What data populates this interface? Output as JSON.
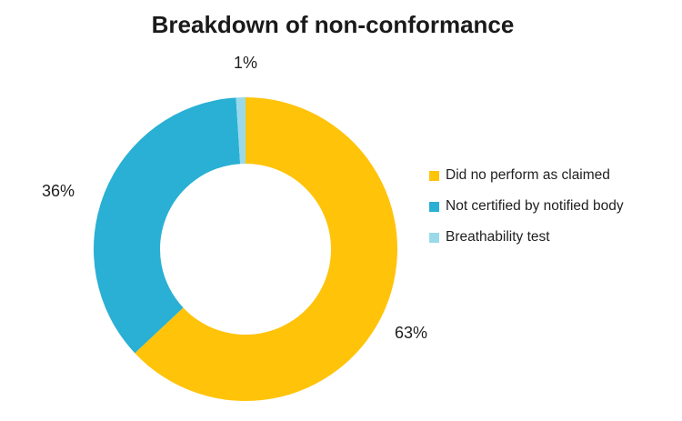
{
  "title": "Breakdown of non-conformance",
  "chart_data": {
    "type": "pie",
    "subtype": "donut",
    "title": "Breakdown of non-conformance",
    "categories": [
      "Did no perform as claimed",
      "Not certified by notified body",
      "Breathability test"
    ],
    "values": [
      63,
      36,
      1
    ],
    "unit": "%",
    "data_labels": [
      "63%",
      "36%",
      "1%"
    ],
    "colors": [
      "#FFC30A",
      "#29B0D4",
      "#9AD9EA"
    ],
    "legend_position": "right",
    "start_angle_deg": 0,
    "direction": "clockwise",
    "hole_ratio": 0.563,
    "background_color": "#FFFFFF",
    "label_positions": "outside"
  }
}
